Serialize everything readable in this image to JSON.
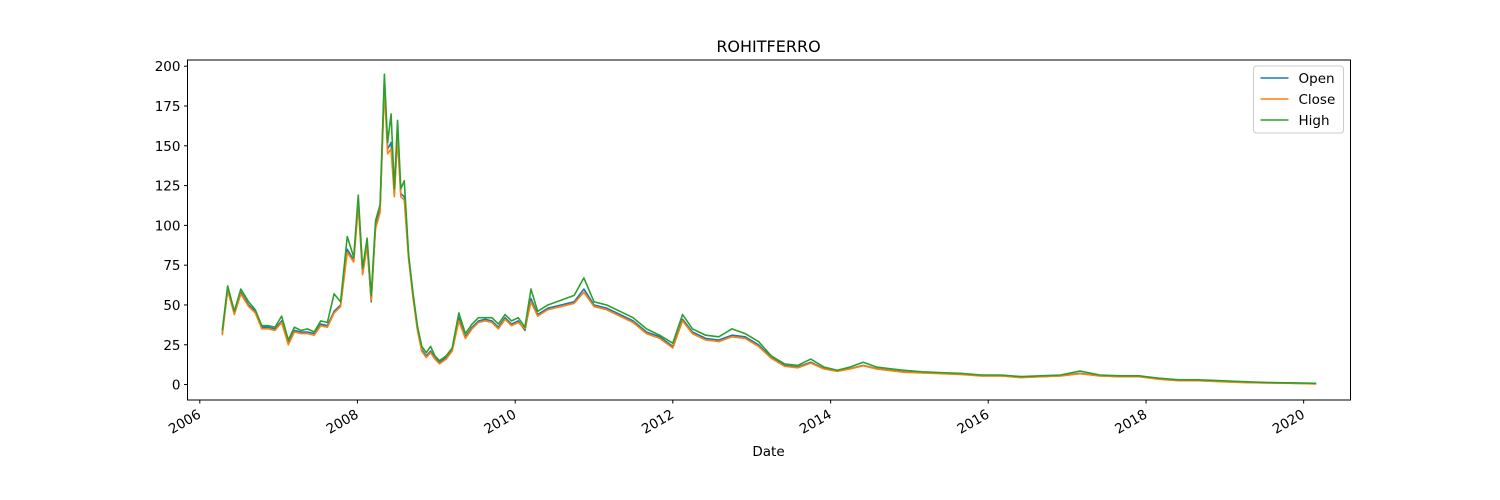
{
  "chart_data": {
    "type": "line",
    "title": "ROHITFERRO",
    "xlabel": "Date",
    "ylabel": "",
    "xlim": [
      "2005-11-05",
      "2020-08-05"
    ],
    "ylim": [
      -9.7,
      203.9
    ],
    "x_ticks": [
      "2006-01-01",
      "2008-01-01",
      "2010-01-01",
      "2012-01-01",
      "2014-01-01",
      "2016-01-01",
      "2018-01-01",
      "2020-01-01"
    ],
    "x_tick_labels": [
      "2006",
      "2008",
      "2010",
      "2012",
      "2014",
      "2016",
      "2018",
      "2020"
    ],
    "y_ticks": [
      0,
      25,
      50,
      75,
      100,
      125,
      150,
      175,
      200
    ],
    "grid": false,
    "legend_position": "top-right",
    "x": [
      "2006-04-15",
      "2006-05-10",
      "2006-06-10",
      "2006-07-10",
      "2006-08-15",
      "2006-09-15",
      "2006-10-15",
      "2006-11-15",
      "2006-12-15",
      "2007-01-15",
      "2007-02-15",
      "2007-03-15",
      "2007-04-15",
      "2007-05-15",
      "2007-06-15",
      "2007-07-15",
      "2007-08-15",
      "2007-09-15",
      "2007-10-15",
      "2007-11-15",
      "2007-12-15",
      "2008-01-05",
      "2008-01-25",
      "2008-02-15",
      "2008-03-05",
      "2008-03-25",
      "2008-04-15",
      "2008-05-05",
      "2008-05-20",
      "2008-06-05",
      "2008-06-20",
      "2008-07-05",
      "2008-07-20",
      "2008-08-05",
      "2008-08-25",
      "2008-09-15",
      "2008-10-05",
      "2008-10-25",
      "2008-11-15",
      "2008-12-05",
      "2008-12-25",
      "2009-01-15",
      "2009-02-15",
      "2009-03-15",
      "2009-04-15",
      "2009-05-15",
      "2009-06-15",
      "2009-07-15",
      "2009-08-15",
      "2009-09-15",
      "2009-10-15",
      "2009-11-15",
      "2009-12-15",
      "2010-01-15",
      "2010-02-15",
      "2010-03-15",
      "2010-04-15",
      "2010-06-01",
      "2010-08-01",
      "2010-10-01",
      "2010-11-15",
      "2011-01-01",
      "2011-03-01",
      "2011-05-01",
      "2011-07-01",
      "2011-09-01",
      "2011-11-01",
      "2012-01-01",
      "2012-02-15",
      "2012-04-01",
      "2012-06-01",
      "2012-08-01",
      "2012-10-01",
      "2012-12-01",
      "2013-02-01",
      "2013-04-01",
      "2013-06-01",
      "2013-08-01",
      "2013-10-01",
      "2013-12-01",
      "2014-02-01",
      "2014-04-01",
      "2014-06-01",
      "2014-08-01",
      "2014-10-01",
      "2014-12-01",
      "2015-03-01",
      "2015-06-01",
      "2015-09-01",
      "2015-12-01",
      "2016-03-01",
      "2016-06-01",
      "2016-09-01",
      "2016-12-01",
      "2017-03-01",
      "2017-06-01",
      "2017-09-01",
      "2017-12-01",
      "2018-03-01",
      "2018-06-01",
      "2018-09-01",
      "2018-12-01",
      "2019-03-01",
      "2019-06-01",
      "2019-09-01",
      "2019-12-01",
      "2020-02-28"
    ],
    "series": [
      {
        "name": "Open",
        "color": "#1f77b4",
        "values": [
          32,
          60,
          45,
          58,
          50,
          46,
          36,
          36,
          35,
          40,
          26,
          34,
          33,
          33,
          32,
          38,
          37,
          46,
          50,
          85,
          78,
          115,
          70,
          88,
          52,
          100,
          110,
          190,
          148,
          152,
          120,
          158,
          120,
          118,
          80,
          55,
          35,
          22,
          18,
          21,
          17,
          14,
          17,
          22,
          42,
          30,
          36,
          40,
          41,
          40,
          36,
          42,
          38,
          40,
          34,
          54,
          44,
          48,
          50,
          52,
          60,
          50,
          48,
          44,
          40,
          33,
          30,
          24,
          41,
          33,
          29,
          28,
          31,
          30,
          25,
          17,
          12,
          11,
          14,
          10,
          8.5,
          10,
          12,
          10,
          9,
          8,
          7.5,
          7,
          6.5,
          5.5,
          5.5,
          4.5,
          5,
          5.5,
          7,
          5.5,
          5,
          5,
          3.5,
          2.5,
          2.5,
          2,
          1.5,
          1.2,
          1,
          0.8,
          0.5
        ]
      },
      {
        "name": "Close",
        "color": "#ff7f0e",
        "values": [
          31,
          59,
          44,
          57,
          49,
          45,
          35,
          35,
          34,
          39,
          25,
          33,
          32,
          32,
          31,
          37,
          36,
          45,
          49,
          83,
          77,
          112,
          69,
          87,
          53,
          98,
          108,
          186,
          145,
          148,
          118,
          155,
          118,
          116,
          79,
          54,
          34,
          21,
          17,
          20,
          16,
          13,
          16,
          21,
          40,
          29,
          35,
          39,
          40,
          39,
          35,
          41,
          37,
          39,
          35,
          52,
          43,
          47,
          49,
          51,
          58,
          49,
          47,
          43,
          39,
          32,
          29,
          23,
          40,
          32,
          28,
          27,
          30,
          29,
          24,
          16.5,
          11.5,
          10.5,
          13.5,
          9.8,
          8.3,
          9.8,
          11.8,
          9.8,
          8.8,
          7.8,
          7.3,
          6.8,
          6.3,
          5.4,
          5.4,
          4.4,
          4.9,
          5.4,
          6.8,
          5.4,
          4.9,
          4.9,
          3.4,
          2.4,
          2.4,
          1.9,
          1.4,
          1.1,
          0.9,
          0.7,
          0.4
        ]
      },
      {
        "name": "High",
        "color": "#2ca02c",
        "values": [
          34,
          62,
          46,
          60,
          52,
          47,
          37,
          37,
          36,
          43,
          28,
          36,
          34,
          35,
          33,
          40,
          39,
          57,
          52,
          93,
          80,
          119,
          73,
          92,
          56,
          103,
          113,
          195,
          152,
          170,
          123,
          166,
          123,
          128,
          82,
          57,
          37,
          24,
          20,
          24,
          18,
          15,
          18,
          23,
          45,
          32,
          38,
          42,
          42,
          42,
          38,
          44,
          40,
          42,
          36,
          60,
          46,
          50,
          53,
          56,
          67,
          52,
          50,
          46,
          42,
          35,
          31,
          26,
          44,
          35,
          31,
          30,
          35,
          32,
          27,
          18,
          13,
          12,
          16,
          11,
          9,
          11,
          14,
          11,
          10,
          9,
          8,
          7.5,
          7,
          6,
          6,
          5,
          5.5,
          6,
          8.5,
          6,
          5.5,
          5.5,
          4,
          3,
          3,
          2.5,
          2,
          1.5,
          1.2,
          1,
          0.8
        ]
      }
    ]
  }
}
